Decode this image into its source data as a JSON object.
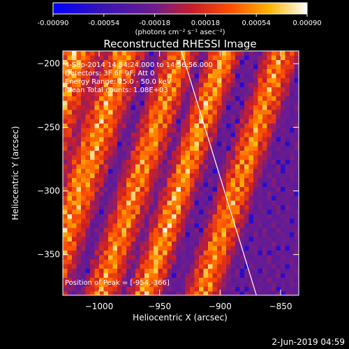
{
  "chart_data": {
    "type": "heatmap",
    "title": "Reconstructed RHESSI Image",
    "xlabel": "Heliocentric X (arcsec)",
    "ylabel": "Heliocentric Y (arcsec)",
    "xlim": [
      -1030,
      -835
    ],
    "ylim": [
      -382,
      -190
    ],
    "x_ticks": [
      -1000,
      -950,
      -900,
      -850
    ],
    "y_ticks": [
      -200,
      -250,
      -300,
      -350
    ],
    "colorbar": {
      "range": [
        -0.0009,
        0.0009
      ],
      "tick_values": [
        -0.0009,
        -0.00054,
        -0.00018,
        0.00018,
        0.00054,
        0.0009
      ],
      "tick_labels": [
        "-0.00090",
        "-0.00054",
        "-0.00018",
        "0.00018",
        "0.00054",
        "0.00090"
      ],
      "units_label": "(photons cm⁻² s⁻¹ asec⁻²)"
    },
    "info_lines": [
      "4-Sep-2014 14:54:24.000 to 14:56:56.000",
      "Detectors: 3F 6F 9F, Att 0",
      "Energy Range: 25.0 - 50.0 keV",
      "Clean    Total counts: 1.08E+03"
    ],
    "peak_label": "Position of Peak = [-954,-366]",
    "peak": {
      "x": -954,
      "y": -366
    },
    "limb_line": [
      [
        -932,
        -190
      ],
      [
        -870,
        -382
      ]
    ],
    "timestamp": "2-Jun-2019 04:59",
    "grid": false
  }
}
